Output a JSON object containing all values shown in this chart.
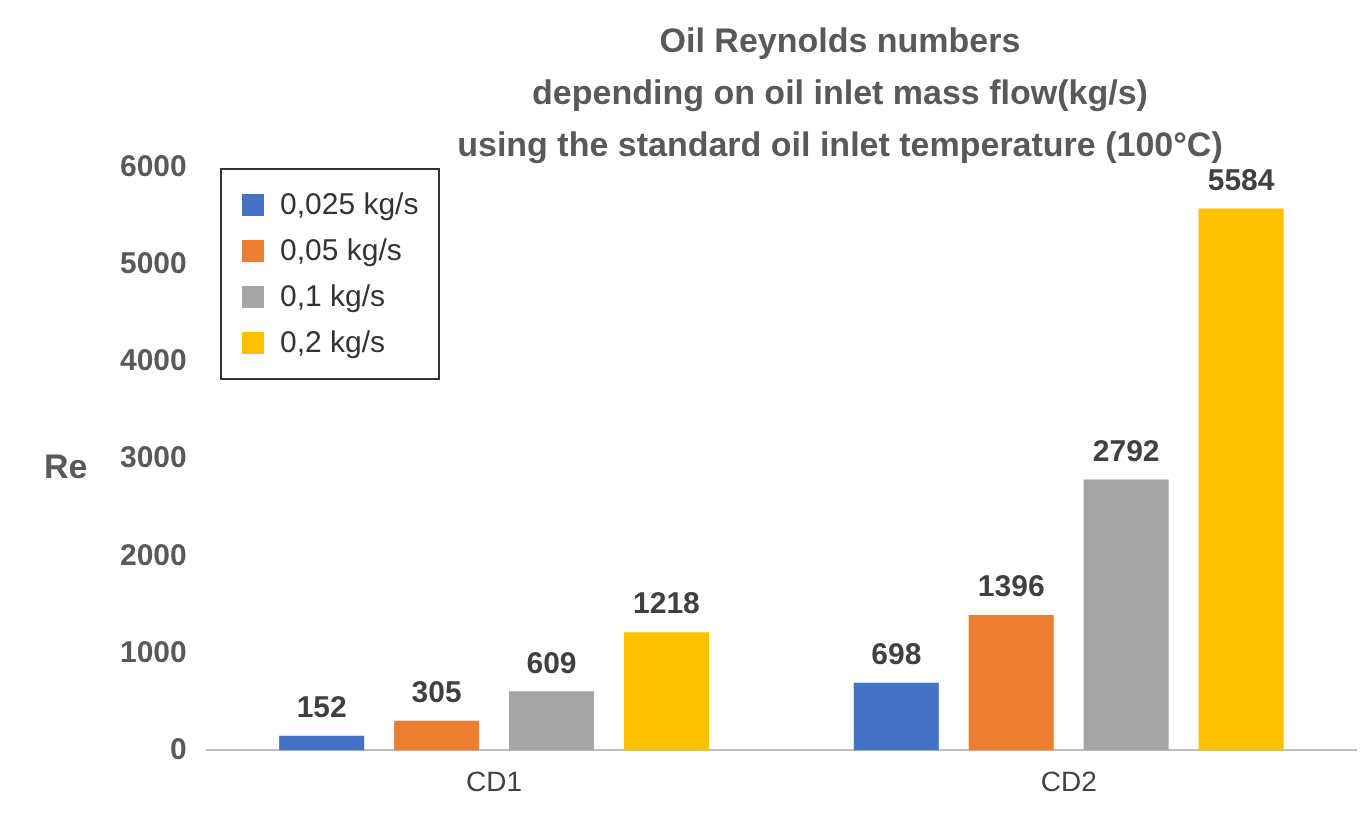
{
  "chart_data": {
    "type": "bar",
    "title": "Oil Reynolds numbers\ndepending on oil inlet mass flow(kg/s)\nusing the standard oil inlet temperature (100°C)",
    "ylabel": "Re",
    "categories": [
      "CD1",
      "CD2"
    ],
    "series": [
      {
        "name": "0,025 kg/s",
        "color": "#4472c4",
        "values": [
          152,
          698
        ]
      },
      {
        "name": "0,05 kg/s",
        "color": "#ed7d31",
        "values": [
          305,
          1396
        ]
      },
      {
        "name": "0,1 kg/s",
        "color": "#a5a5a5",
        "values": [
          609,
          2792
        ]
      },
      {
        "name": "0,2 kg/s",
        "color": "#ffc000",
        "values": [
          1218,
          5584
        ]
      }
    ],
    "ylim": [
      0,
      6000
    ],
    "yticks": [
      0,
      1000,
      2000,
      3000,
      4000,
      5000,
      6000
    ],
    "grid": false,
    "legend": "top left",
    "data_labels": true
  }
}
